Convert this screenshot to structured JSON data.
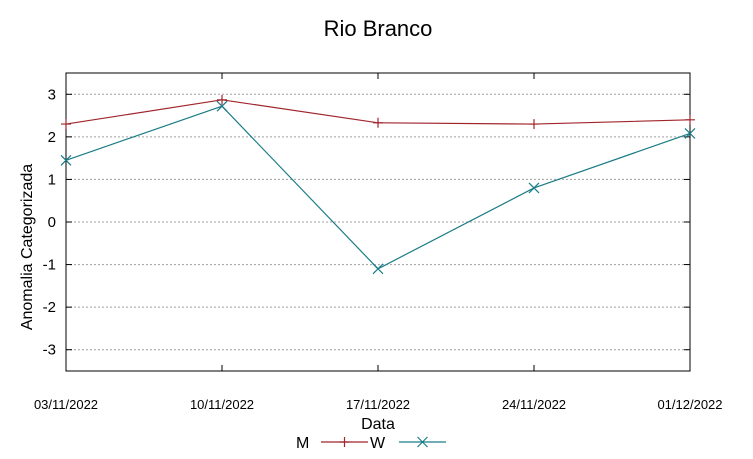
{
  "chart_data": {
    "type": "line",
    "title": "Rio Branco",
    "xlabel": "Data",
    "ylabel": "Anomalia Categorizada",
    "ylim": [
      -3.5,
      3.5
    ],
    "yticks": [
      3,
      2,
      1,
      0,
      -1,
      -2,
      -3
    ],
    "ytick_labels": [
      "3",
      "2",
      "1",
      "0",
      "-1",
      "-2",
      "-3"
    ],
    "x": [
      "03/11/2022",
      "10/11/2022",
      "17/11/2022",
      "24/11/2022",
      "01/12/2022"
    ],
    "grid": true,
    "legend_position": "bottom-center",
    "series": [
      {
        "name": "M",
        "color": "#a0262c",
        "marker": "plus",
        "values": [
          2.3,
          2.87,
          2.33,
          2.3,
          2.4
        ]
      },
      {
        "name": "W",
        "color": "#1b7c86",
        "marker": "cross",
        "values": [
          1.45,
          2.72,
          -1.1,
          0.8,
          2.08
        ]
      }
    ]
  }
}
